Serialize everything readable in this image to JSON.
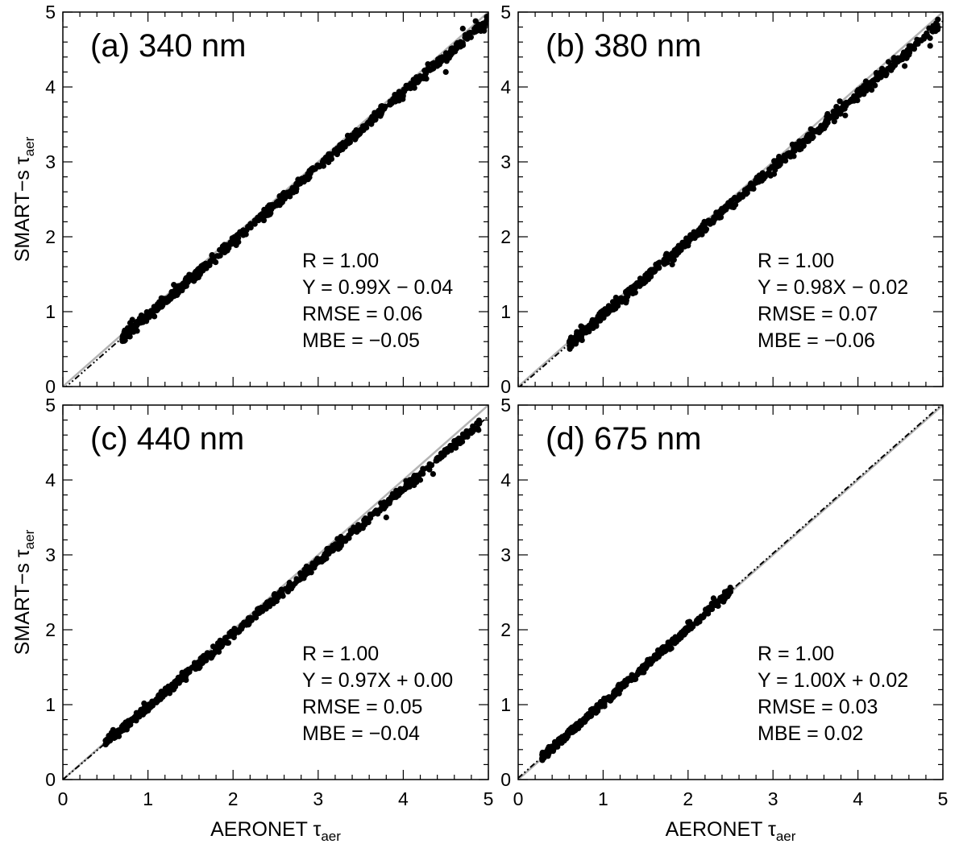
{
  "figure": {
    "x_axis_label": {
      "main": "AERONET τ",
      "sub": "aer"
    },
    "y_axis_label": {
      "main": "SMART−s τ",
      "sub": "aer"
    }
  },
  "chart_data": [
    {
      "type": "scatter",
      "title": "(a) 340 nm",
      "xlabel": "AERONET τaer",
      "ylabel": "SMART−s τaer",
      "xlim": [
        0,
        5
      ],
      "ylim": [
        0,
        5
      ],
      "xticks": [
        "0",
        "1",
        "2",
        "3",
        "4",
        "5"
      ],
      "yticks": [
        "0",
        "1",
        "2",
        "3",
        "4",
        "5"
      ],
      "stats": [
        "R = 1.00",
        "Y = 0.99X − 0.04",
        "RMSE =  0.06",
        "MBE =  −0.05"
      ],
      "fit": {
        "slope": 0.99,
        "intercept": -0.04
      },
      "x_range": [
        0.7,
        5.0
      ],
      "scatter_sd": 0.035,
      "point_count": 700,
      "seed": 11,
      "outliers": [
        [
          4.25,
          4.15
        ],
        [
          4.4,
          4.28
        ],
        [
          4.5,
          4.2
        ],
        [
          4.7,
          4.78
        ],
        [
          4.85,
          4.88
        ],
        [
          4.95,
          4.75
        ]
      ]
    },
    {
      "type": "scatter",
      "title": "(b) 380 nm",
      "xlabel": "AERONET τaer",
      "ylabel": "SMART−s τaer",
      "xlim": [
        0,
        5
      ],
      "ylim": [
        0,
        5
      ],
      "xticks": [
        "0",
        "1",
        "2",
        "3",
        "4",
        "5"
      ],
      "yticks": [
        "0",
        "1",
        "2",
        "3",
        "4",
        "5"
      ],
      "stats": [
        "R = 1.00",
        "Y = 0.98X − 0.02",
        "RMSE =  0.07",
        "MBE =  −0.06"
      ],
      "fit": {
        "slope": 0.98,
        "intercept": -0.02
      },
      "x_range": [
        0.6,
        4.95
      ],
      "scatter_sd": 0.035,
      "point_count": 700,
      "seed": 23,
      "outliers": [
        [
          4.2,
          4.02
        ],
        [
          4.25,
          4.18
        ],
        [
          4.55,
          4.28
        ],
        [
          4.85,
          4.55
        ],
        [
          4.9,
          4.8
        ],
        [
          3.85,
          3.62
        ]
      ]
    },
    {
      "type": "scatter",
      "title": "(c) 440 nm",
      "xlabel": "AERONET τaer",
      "ylabel": "SMART−s τaer",
      "xlim": [
        0,
        5
      ],
      "ylim": [
        0,
        5
      ],
      "xticks": [
        "0",
        "1",
        "2",
        "3",
        "4",
        "5"
      ],
      "yticks": [
        "0",
        "1",
        "2",
        "3",
        "4",
        "5"
      ],
      "stats": [
        "R = 1.00",
        "Y = 0.97X + 0.00",
        "RMSE =  0.05",
        "MBE =  −0.04"
      ],
      "fit": {
        "slope": 0.97,
        "intercept": 0.0
      },
      "x_range": [
        0.5,
        4.9
      ],
      "scatter_sd": 0.03,
      "point_count": 650,
      "seed": 37,
      "outliers": [
        [
          3.7,
          3.55
        ],
        [
          3.8,
          3.5
        ],
        [
          4.2,
          4.0
        ],
        [
          4.35,
          4.08
        ],
        [
          4.6,
          4.52
        ],
        [
          4.85,
          4.68
        ]
      ]
    },
    {
      "type": "scatter",
      "title": "(d) 675 nm",
      "xlabel": "AERONET τaer",
      "ylabel": "SMART−s τaer",
      "xlim": [
        0,
        5
      ],
      "ylim": [
        0,
        5
      ],
      "xticks": [
        "0",
        "1",
        "2",
        "3",
        "4",
        "5"
      ],
      "yticks": [
        "0",
        "1",
        "2",
        "3",
        "4",
        "5"
      ],
      "stats": [
        "R = 1.00",
        "Y = 1.00X + 0.02",
        "RMSE =  0.03",
        "MBE =   0.02"
      ],
      "fit": {
        "slope": 1.0,
        "intercept": 0.02
      },
      "x_range": [
        0.28,
        2.5
      ],
      "scatter_sd": 0.025,
      "point_count": 500,
      "seed": 53,
      "outliers": [
        [
          2.3,
          2.42
        ],
        [
          2.45,
          2.5
        ],
        [
          2.0,
          2.1
        ]
      ]
    }
  ],
  "colors": {
    "points": "#000000",
    "one_to_one_line": "#b3b3b3",
    "fit_line": "#000000",
    "axes": "#000000"
  }
}
